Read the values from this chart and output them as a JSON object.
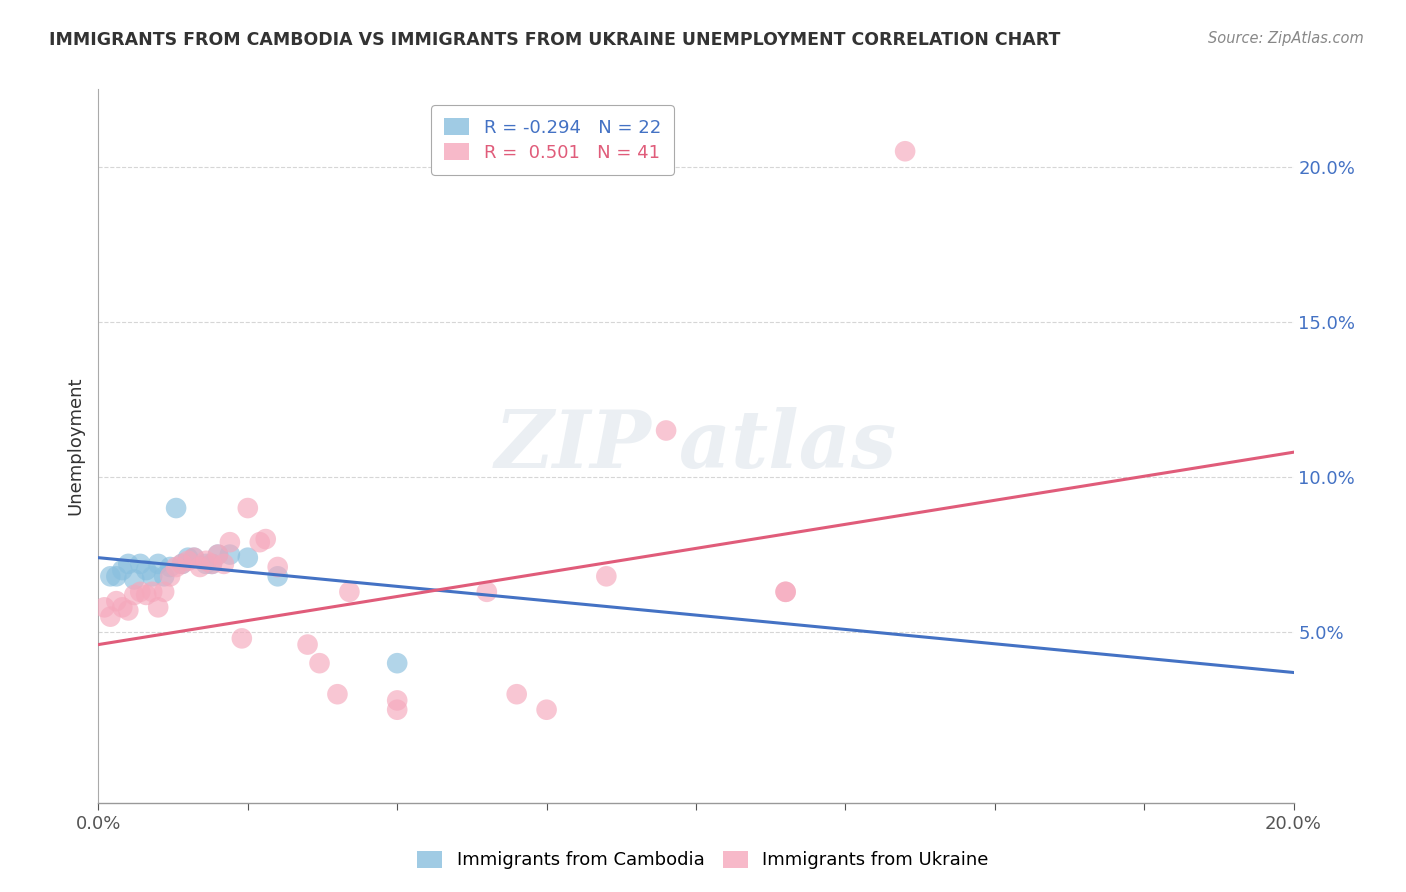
{
  "title": "IMMIGRANTS FROM CAMBODIA VS IMMIGRANTS FROM UKRAINE UNEMPLOYMENT CORRELATION CHART",
  "source": "Source: ZipAtlas.com",
  "ylabel": "Unemployment",
  "y_ticks": [
    0.05,
    0.1,
    0.15,
    0.2
  ],
  "y_tick_labels": [
    "5.0%",
    "10.0%",
    "15.0%",
    "20.0%"
  ],
  "x_range": [
    0.0,
    0.2
  ],
  "y_range": [
    -0.005,
    0.225
  ],
  "legend_r_cambodia": "-0.294",
  "legend_n_cambodia": "22",
  "legend_r_ukraine": "0.501",
  "legend_n_ukraine": "41",
  "color_cambodia": "#89bfde",
  "color_ukraine": "#f5a8bc",
  "line_color_cambodia": "#4472c4",
  "line_color_ukraine": "#e05c7a",
  "cambodia_points": [
    [
      0.002,
      0.068
    ],
    [
      0.003,
      0.068
    ],
    [
      0.004,
      0.07
    ],
    [
      0.005,
      0.072
    ],
    [
      0.006,
      0.067
    ],
    [
      0.007,
      0.072
    ],
    [
      0.008,
      0.07
    ],
    [
      0.009,
      0.068
    ],
    [
      0.01,
      0.072
    ],
    [
      0.011,
      0.068
    ],
    [
      0.012,
      0.071
    ],
    [
      0.013,
      0.09
    ],
    [
      0.014,
      0.072
    ],
    [
      0.015,
      0.074
    ],
    [
      0.016,
      0.074
    ],
    [
      0.018,
      0.072
    ],
    [
      0.019,
      0.072
    ],
    [
      0.02,
      0.075
    ],
    [
      0.022,
      0.075
    ],
    [
      0.025,
      0.074
    ],
    [
      0.03,
      0.068
    ],
    [
      0.05,
      0.04
    ]
  ],
  "ukraine_points": [
    [
      0.001,
      0.058
    ],
    [
      0.002,
      0.055
    ],
    [
      0.003,
      0.06
    ],
    [
      0.004,
      0.058
    ],
    [
      0.005,
      0.057
    ],
    [
      0.006,
      0.062
    ],
    [
      0.007,
      0.063
    ],
    [
      0.008,
      0.062
    ],
    [
      0.009,
      0.063
    ],
    [
      0.01,
      0.058
    ],
    [
      0.011,
      0.063
    ],
    [
      0.012,
      0.068
    ],
    [
      0.013,
      0.071
    ],
    [
      0.014,
      0.072
    ],
    [
      0.015,
      0.073
    ],
    [
      0.016,
      0.074
    ],
    [
      0.017,
      0.071
    ],
    [
      0.018,
      0.073
    ],
    [
      0.019,
      0.072
    ],
    [
      0.02,
      0.075
    ],
    [
      0.021,
      0.072
    ],
    [
      0.022,
      0.079
    ],
    [
      0.024,
      0.048
    ],
    [
      0.025,
      0.09
    ],
    [
      0.027,
      0.079
    ],
    [
      0.028,
      0.08
    ],
    [
      0.03,
      0.071
    ],
    [
      0.035,
      0.046
    ],
    [
      0.037,
      0.04
    ],
    [
      0.04,
      0.03
    ],
    [
      0.042,
      0.063
    ],
    [
      0.05,
      0.028
    ],
    [
      0.05,
      0.025
    ],
    [
      0.065,
      0.063
    ],
    [
      0.07,
      0.03
    ],
    [
      0.075,
      0.025
    ],
    [
      0.085,
      0.068
    ],
    [
      0.095,
      0.115
    ],
    [
      0.115,
      0.063
    ],
    [
      0.115,
      0.063
    ],
    [
      0.135,
      0.205
    ]
  ],
  "line_cambodia": [
    0.0,
    0.074,
    0.2,
    0.037
  ],
  "line_ukraine": [
    0.0,
    0.046,
    0.2,
    0.108
  ]
}
